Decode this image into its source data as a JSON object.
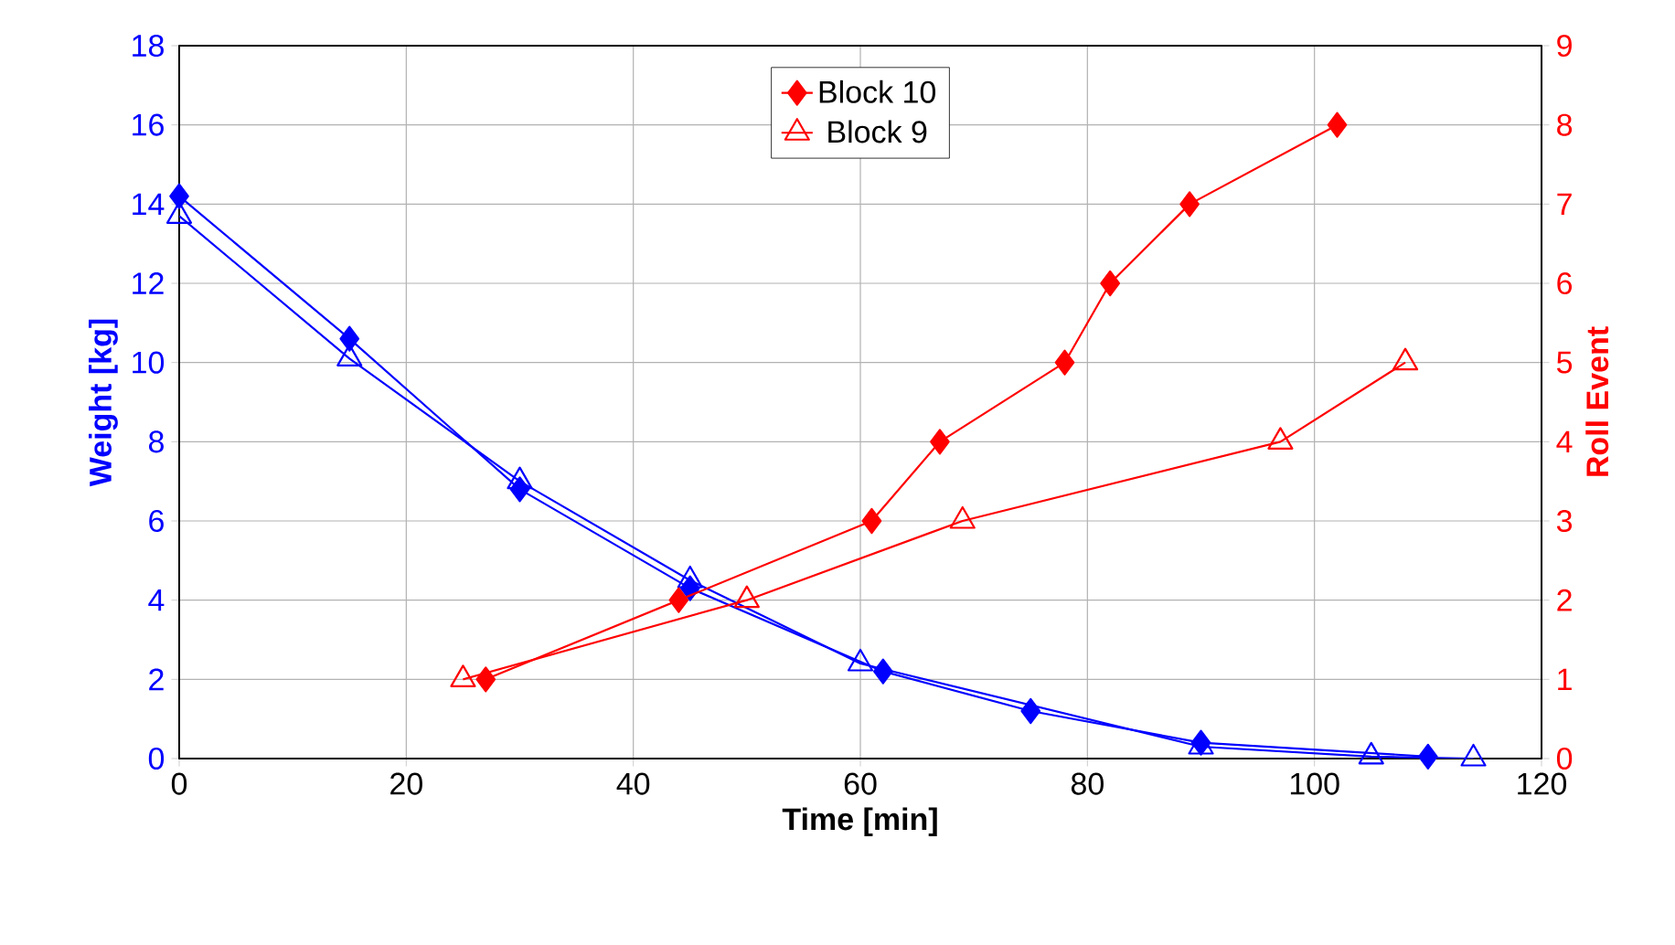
{
  "chart_data": {
    "type": "line",
    "xlabel": "Time [min]",
    "ylabel": "Weight [kg]",
    "y2label": "Roll Event",
    "xlim": [
      0,
      120
    ],
    "xticks": [
      0,
      20,
      40,
      60,
      80,
      100,
      120
    ],
    "ylim": [
      0,
      18
    ],
    "yticks": [
      0,
      2,
      4,
      6,
      8,
      10,
      12,
      14,
      16,
      18
    ],
    "y2lim": [
      0,
      9
    ],
    "y2ticks": [
      0,
      1,
      2,
      3,
      4,
      5,
      6,
      7,
      8,
      9
    ],
    "grid": true,
    "legend": "top",
    "series": [
      {
        "color": "#0000ff",
        "marker": "diamond",
        "x": [
          0,
          15,
          30,
          45,
          62,
          75,
          90,
          110
        ],
        "values": [
          14.2,
          10.6,
          6.8,
          4.3,
          2.2,
          1.2,
          0.4,
          0.05
        ]
      },
      {
        "color": "#0000ff",
        "marker": "triangle",
        "x": [
          0,
          15,
          30,
          45,
          60,
          90,
          105,
          114
        ],
        "values": [
          13.7,
          10.1,
          7.0,
          4.5,
          2.4,
          0.3,
          0.05,
          0
        ]
      },
      {
        "name": "Block 10",
        "color": "#ff0000",
        "marker": "diamond",
        "axis": "y2",
        "x": [
          27,
          44,
          61,
          67,
          78,
          82,
          89,
          102
        ],
        "values": [
          1,
          2,
          3,
          4,
          5,
          6,
          7,
          8
        ]
      },
      {
        "name": "Block 9",
        "color": "#ff0000",
        "marker": "triangle",
        "axis": "y2",
        "x": [
          25,
          50,
          69,
          97,
          108
        ],
        "values": [
          1,
          2,
          3,
          4,
          5
        ]
      }
    ]
  }
}
